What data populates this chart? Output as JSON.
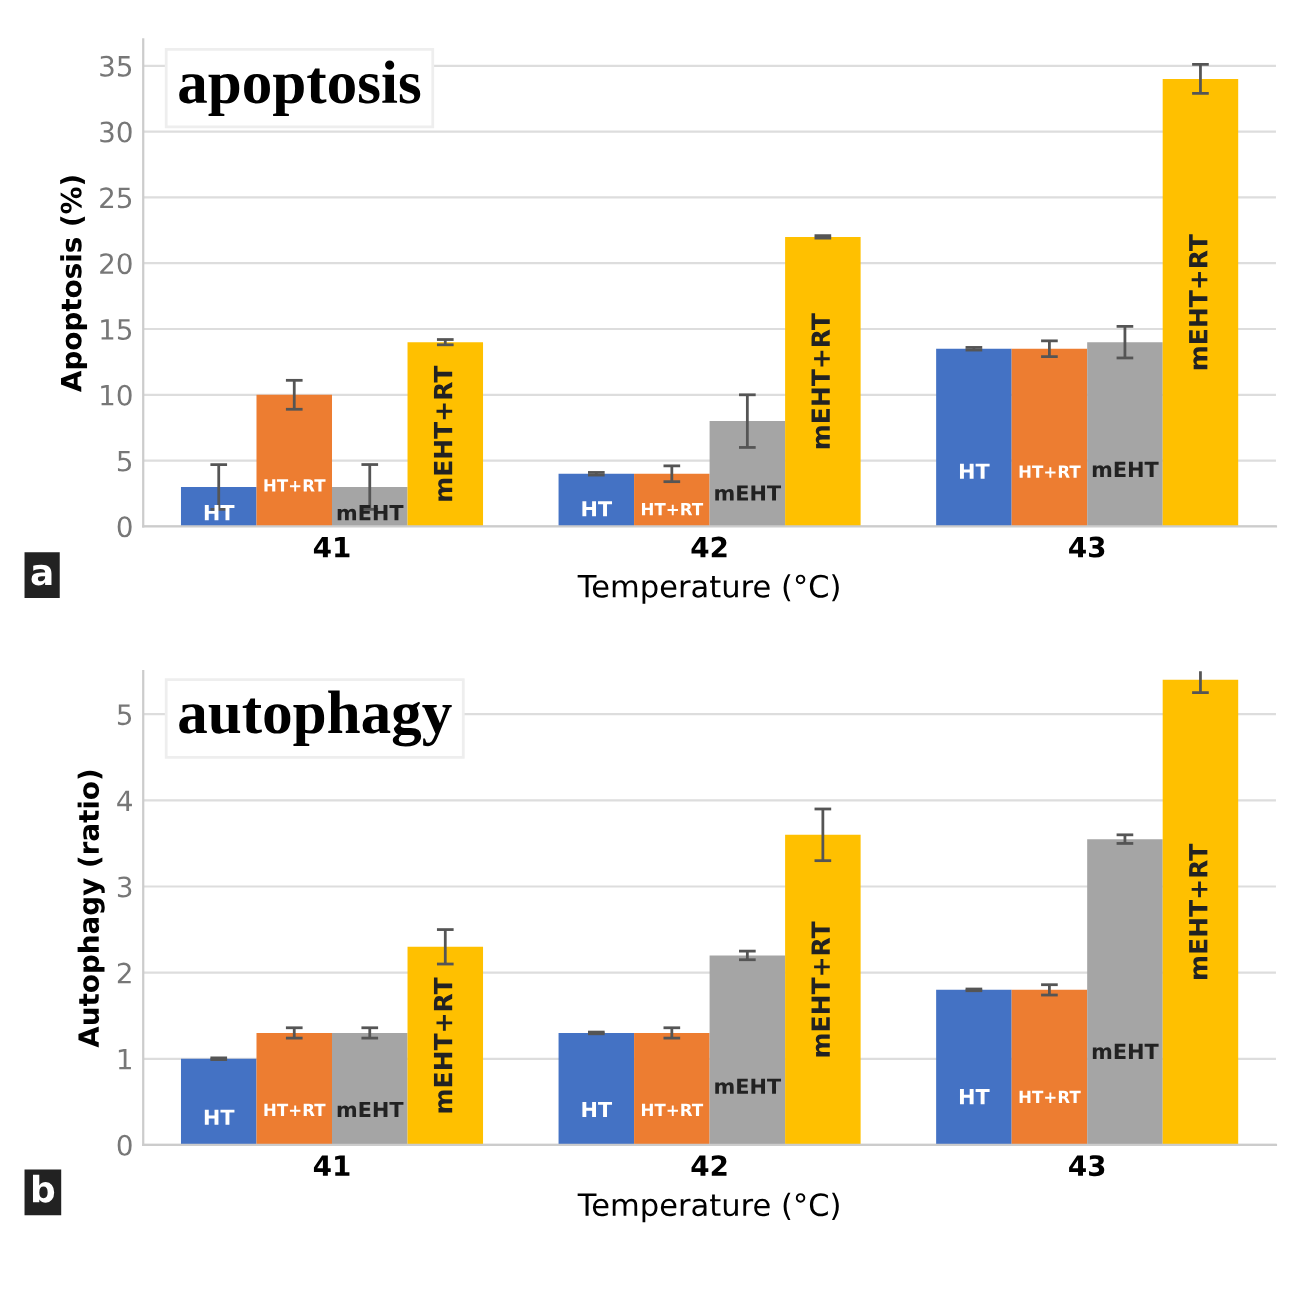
{
  "chart_data": [
    {
      "type": "bar",
      "title": "apoptosis",
      "xlabel": "Temperature (°C)",
      "ylabel": "Apoptosis (%)",
      "categories": [
        "41",
        "42",
        "43"
      ],
      "series": [
        {
          "name": "HT",
          "color": "#4472c4",
          "values": [
            3,
            4,
            13.5
          ],
          "errors": [
            1.7,
            0.1,
            0.1
          ]
        },
        {
          "name": "HT+RT",
          "color": "#ed7d31",
          "values": [
            10,
            4,
            13.5
          ],
          "errors": [
            1.1,
            0.6,
            0.6
          ]
        },
        {
          "name": "mEHT",
          "color": "#a5a5a5",
          "values": [
            3,
            8,
            14
          ],
          "errors": [
            1.7,
            2,
            1.2
          ]
        },
        {
          "name": "mEHT+RT",
          "color": "#ffc000",
          "values": [
            14,
            22,
            34
          ],
          "errors": [
            0.2,
            0.1,
            1.1
          ]
        }
      ],
      "ylim": [
        0,
        37
      ],
      "yticks": [
        0,
        5,
        10,
        15,
        20,
        25,
        30,
        35
      ],
      "grid": "y",
      "legend": false,
      "annotations": [
        "a"
      ]
    },
    {
      "type": "bar",
      "title": "autophagy",
      "xlabel": "Temperature (°C)",
      "ylabel": "Autophagy (ratio)",
      "categories": [
        "41",
        "42",
        "43"
      ],
      "series": [
        {
          "name": "HT",
          "color": "#4472c4",
          "values": [
            1,
            1.3,
            1.8
          ],
          "errors": [
            0.01,
            0.01,
            0.01
          ]
        },
        {
          "name": "HT+RT",
          "color": "#ed7d31",
          "values": [
            1.3,
            1.3,
            1.8
          ],
          "errors": [
            0.06,
            0.06,
            0.06
          ]
        },
        {
          "name": "mEHT",
          "color": "#a5a5a5",
          "values": [
            1.3,
            2.2,
            3.55
          ],
          "errors": [
            0.06,
            0.05,
            0.05
          ]
        },
        {
          "name": "mEHT+RT",
          "color": "#ffc000",
          "values": [
            2.3,
            3.6,
            5.4
          ],
          "errors": [
            0.2,
            0.3,
            0.15
          ]
        }
      ],
      "ylim": [
        0,
        5.5
      ],
      "yticks": [
        0,
        1,
        2,
        3,
        4,
        5
      ],
      "grid": "y",
      "legend": false,
      "annotations": [
        "b"
      ]
    }
  ]
}
